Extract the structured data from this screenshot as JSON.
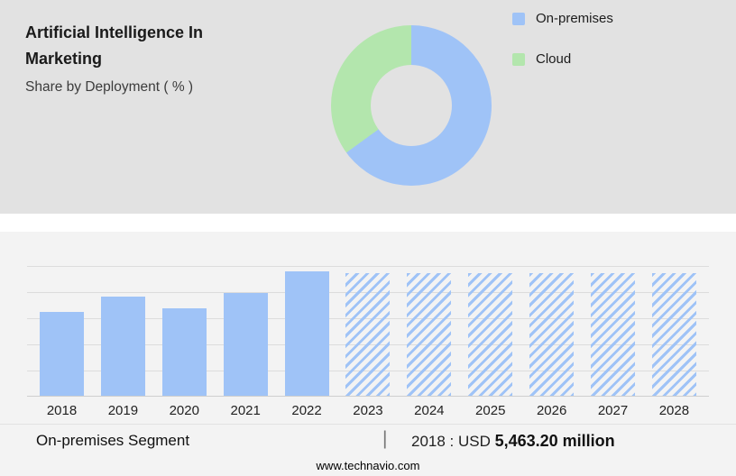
{
  "header": {
    "title_line1": "Artificial Intelligence In",
    "title_line2": "Marketing",
    "subtitle": "Share by Deployment ( % )"
  },
  "donut": {
    "legend": [
      {
        "label": "On-premises",
        "color": "#9fc3f7"
      },
      {
        "label": "Cloud",
        "color": "#b3e6ad"
      }
    ],
    "slices": [
      {
        "name": "On-premises",
        "percent": 65,
        "color": "#9fc3f7"
      },
      {
        "name": "Cloud",
        "percent": 35,
        "color": "#b3e6ad"
      }
    ]
  },
  "chart_data": {
    "type": "bar",
    "title": "On-premises segment size by year (USD million, estimated from bar heights; only 2018 labeled)",
    "categories": [
      "2018",
      "2019",
      "2020",
      "2021",
      "2022",
      "2023",
      "2024",
      "2025",
      "2026",
      "2027",
      "2028"
    ],
    "values": [
      5463.2,
      6500,
      5700,
      6730,
      8160,
      8050,
      8050,
      8050,
      8050,
      8050,
      8050
    ],
    "labeled_value": {
      "year": "2018",
      "value": "USD 5,463.20 million"
    },
    "forecast_start_index": 5,
    "forecast_style": "hatched",
    "bar_color": "#9fc3f7",
    "xlabel": "",
    "ylabel": "",
    "ylim": [
      0,
      8500
    ],
    "grid": true,
    "legend_position": "none"
  },
  "footer": {
    "segment_label": "On-premises Segment",
    "separator": "|",
    "stat_prefix": "2018 : USD ",
    "stat_value": "5,463.20 million",
    "website": "www.technavio.com"
  }
}
